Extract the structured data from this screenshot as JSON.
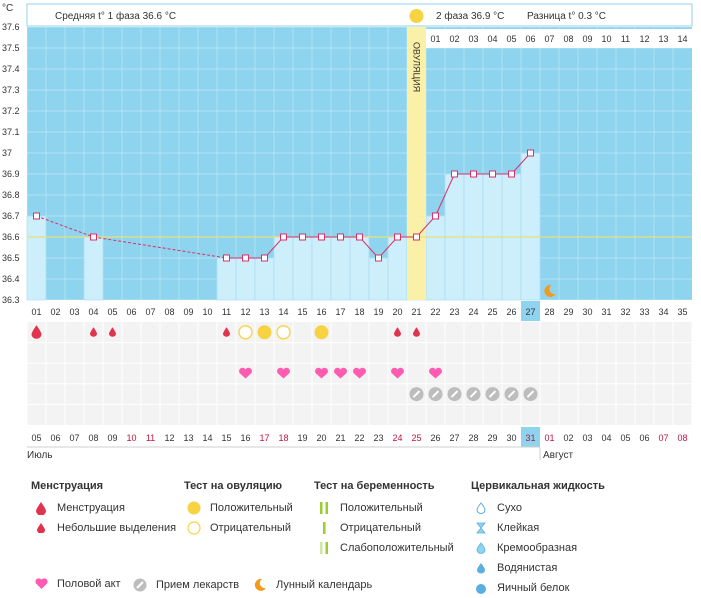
{
  "header": {
    "unit": "°C",
    "phase1_label": "Средняя t° 1 фаза",
    "phase1_value": "36.6 °C",
    "phase2_label": "2 фаза",
    "phase2_value": "36.9 °C",
    "diff_label": "Разница t°",
    "diff_value": "0.3 °C",
    "ovulation_label": "ОВУЛЯЦИЯ"
  },
  "chart_data": {
    "type": "bar",
    "ylim": [
      36.3,
      37.6
    ],
    "y_ticks": [
      "36.3",
      "36.4",
      "36.5",
      "36.6",
      "36.7",
      "36.8",
      "36.9",
      "37",
      "37.1",
      "37.2",
      "37.3",
      "37.4",
      "37.5",
      "37.6"
    ],
    "coverline": 36.6,
    "cycle_days": [
      "01",
      "02",
      "03",
      "04",
      "05",
      "06",
      "07",
      "08",
      "09",
      "10",
      "11",
      "12",
      "13",
      "14",
      "15",
      "16",
      "17",
      "18",
      "19",
      "20",
      "21",
      "22",
      "23",
      "24",
      "25",
      "26",
      "27",
      "28",
      "29",
      "30",
      "31",
      "32",
      "33",
      "34",
      "35"
    ],
    "phase2_days": [
      "01",
      "02",
      "03",
      "04",
      "05",
      "06",
      "07",
      "08",
      "09",
      "10",
      "11",
      "12",
      "13",
      "14"
    ],
    "temperatures": [
      36.7,
      null,
      null,
      36.6,
      null,
      null,
      null,
      null,
      null,
      null,
      36.5,
      36.5,
      36.5,
      36.6,
      36.6,
      36.6,
      36.6,
      36.6,
      36.5,
      36.6,
      36.6,
      36.7,
      36.9,
      36.9,
      36.9,
      36.9,
      37.0,
      null,
      null,
      null,
      null,
      null,
      null,
      null,
      null
    ],
    "current_day": "27",
    "ovulation_day": "21",
    "calendar_dates": [
      "05",
      "06",
      "07",
      "08",
      "09",
      "10",
      "11",
      "12",
      "13",
      "14",
      "15",
      "16",
      "17",
      "18",
      "19",
      "20",
      "21",
      "22",
      "23",
      "24",
      "25",
      "26",
      "27",
      "28",
      "29",
      "30",
      "31",
      "01",
      "02",
      "03",
      "04",
      "05",
      "06",
      "07",
      "08"
    ],
    "weekend_indices": [
      5,
      6,
      12,
      13,
      19,
      20,
      26,
      27,
      33,
      34
    ],
    "current_date": "31",
    "month1": "Июль",
    "month2": "Август",
    "menstruation_days": [
      0
    ],
    "spotting_days": [
      3,
      4,
      10,
      19,
      20
    ],
    "ovulation_test_positive_days": [
      12,
      15
    ],
    "ovulation_test_negative_days": [
      11,
      13
    ],
    "intercourse_days": [
      11,
      13,
      15,
      16,
      17,
      19,
      21
    ],
    "medication_days": [
      20,
      21,
      22,
      23,
      24,
      25,
      26
    ],
    "lunar_day": 27
  },
  "colors": {
    "plot_bg": "#8fd4ee",
    "bar_fill": "#cdeefb",
    "ovulation_band": "#fbf0a8",
    "temp_line": "#d9306a",
    "coverline": "#e8e07a",
    "current_day": "#8fd4ee",
    "weekend_text": "#c0143c",
    "menstruation": "#e0334f",
    "heart": "#ff5bb0",
    "sun": "#f7d343",
    "moon": "#f39a18",
    "pill_gray": "#bdbdbd"
  },
  "legend": {
    "menstruation": {
      "title": "Менструация",
      "items": [
        "Менструация",
        "Небольшие выделения"
      ]
    },
    "ovulation_test": {
      "title": "Тест на овуляцию",
      "items": [
        "Положительный",
        "Отрицательный"
      ]
    },
    "pregnancy_test": {
      "title": "Тест на беременность",
      "items": [
        "Положительный",
        "Отрицательный",
        "Слабоположительный"
      ]
    },
    "cervical_fluid": {
      "title": "Цервикальная жидкость",
      "items": [
        "Сухо",
        "Клейкая",
        "Кремообразная",
        "Водянистая",
        "Яичный белок"
      ]
    },
    "bottom": {
      "intercourse": "Половой акт",
      "medication": "Прием лекарств",
      "lunar": "Лунный календарь"
    }
  }
}
